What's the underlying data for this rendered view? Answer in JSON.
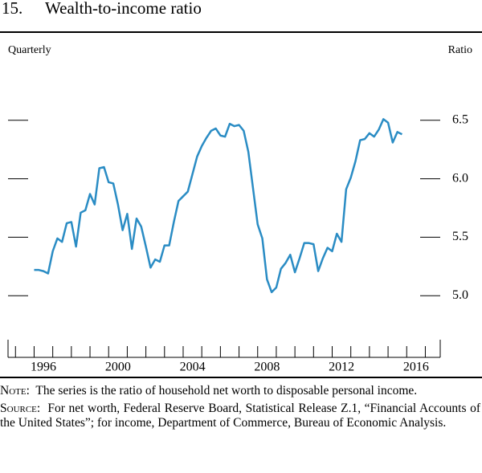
{
  "chart_data": {
    "type": "line",
    "number": "15.",
    "title": "Wealth-to-income ratio",
    "frequency_label": "Quarterly",
    "y_axis_label": "Ratio",
    "color": "#2a8cc4",
    "x": [
      1996,
      1996.25,
      1996.5,
      1996.75,
      1997,
      1997.25,
      1997.5,
      1997.75,
      1998,
      1998.25,
      1998.5,
      1998.75,
      1999,
      1999.25,
      1999.5,
      1999.75,
      2000,
      2000.25,
      2000.5,
      2000.75,
      2001,
      2001.25,
      2001.5,
      2001.75,
      2002,
      2002.25,
      2002.5,
      2002.75,
      2003,
      2003.25,
      2003.5,
      2003.75,
      2004,
      2004.25,
      2004.5,
      2004.75,
      2005,
      2005.25,
      2005.5,
      2005.75,
      2006,
      2006.25,
      2006.5,
      2006.75,
      2007,
      2007.25,
      2007.5,
      2007.75,
      2008,
      2008.25,
      2008.5,
      2008.75,
      2009,
      2009.25,
      2009.5,
      2009.75,
      2010,
      2010.25,
      2010.5,
      2010.75,
      2011,
      2011.25,
      2011.5,
      2011.75,
      2012,
      2012.25,
      2012.5,
      2012.75,
      2013,
      2013.25,
      2013.5,
      2013.75,
      2014,
      2014.25,
      2014.5,
      2014.75,
      2015,
      2015.25,
      2015.5,
      2015.75
    ],
    "values": [
      5.22,
      5.22,
      5.21,
      5.19,
      5.38,
      5.49,
      5.46,
      5.62,
      5.63,
      5.42,
      5.71,
      5.73,
      5.87,
      5.78,
      6.09,
      6.1,
      5.97,
      5.96,
      5.78,
      5.56,
      5.7,
      5.4,
      5.66,
      5.59,
      5.42,
      5.24,
      5.31,
      5.29,
      5.43,
      5.43,
      5.63,
      5.81,
      5.85,
      5.89,
      6.04,
      6.19,
      6.28,
      6.35,
      6.41,
      6.43,
      6.37,
      6.36,
      6.47,
      6.45,
      6.46,
      6.41,
      6.23,
      5.92,
      5.61,
      5.49,
      5.14,
      5.03,
      5.07,
      5.23,
      5.28,
      5.35,
      5.2,
      5.32,
      5.45,
      5.45,
      5.44,
      5.21,
      5.32,
      5.41,
      5.38,
      5.53,
      5.46,
      5.91,
      6.01,
      6.15,
      6.33,
      6.34,
      6.39,
      6.36,
      6.42,
      6.51,
      6.48,
      6.31,
      6.4,
      6.38
    ],
    "xlim": [
      1994.6,
      2017.8
    ],
    "xticks": [
      {
        "value": 1996.5,
        "label": "1996"
      },
      {
        "value": 2000.5,
        "label": "2000"
      },
      {
        "value": 2004.5,
        "label": "2004"
      },
      {
        "value": 2008.5,
        "label": "2008"
      },
      {
        "value": 2012.5,
        "label": "2012"
      },
      {
        "value": 2016.5,
        "label": "2016"
      }
    ],
    "xminor": [
      1995,
      1996,
      1997,
      1998,
      1999,
      2000,
      2001,
      2002,
      2003,
      2004,
      2005,
      2006,
      2007,
      2008,
      2009,
      2010,
      2011,
      2012,
      2013,
      2014,
      2015,
      2016,
      2017
    ],
    "ylim": [
      4.5,
      7.0
    ],
    "yticks": [
      {
        "value": 5.0,
        "label": "5.0"
      },
      {
        "value": 5.5,
        "label": "5.5"
      },
      {
        "value": 6.0,
        "label": "6.0"
      },
      {
        "value": 6.5,
        "label": "6.5"
      }
    ],
    "note_label": "Note:",
    "note": "The series is the ratio of household net worth to disposable personal income.",
    "source_label": "Source:",
    "source": "For net worth, Federal Reserve Board, Statistical Release Z.1, “Financial Accounts of the United States”; for income, Department of Commerce, Bureau of Economic Analysis."
  }
}
